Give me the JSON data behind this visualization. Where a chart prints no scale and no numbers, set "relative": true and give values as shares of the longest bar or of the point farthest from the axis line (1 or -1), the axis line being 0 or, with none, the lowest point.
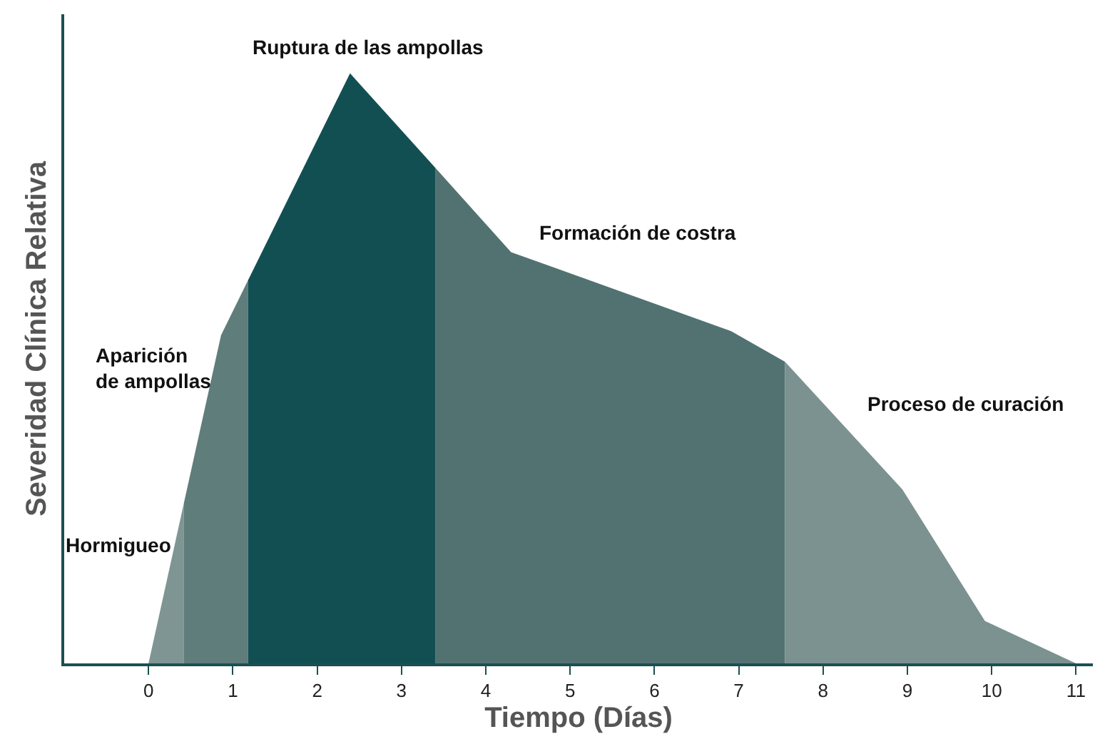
{
  "chart_data": {
    "type": "area",
    "relative": true,
    "xlabel": "Tiempo (Días)",
    "ylabel": "Severidad Clínica Relativa",
    "xlim": [
      -1,
      11.2
    ],
    "xticks": [
      0,
      1,
      2,
      3,
      4,
      5,
      6,
      7,
      8,
      9,
      10,
      11
    ],
    "series": [
      {
        "color": "#7f9593",
        "x": [
          0,
          0.42
        ],
        "values": [
          0,
          0.272
        ]
      },
      {
        "color": "#5f7d7b",
        "x": [
          0.42,
          0.86,
          1.18
        ],
        "values": [
          0.272,
          0.556,
          0.649
        ]
      },
      {
        "color": "#124f53",
        "x": [
          1.18,
          2.39,
          3.4
        ],
        "values": [
          0.649,
          1,
          0.84
        ]
      },
      {
        "color": "#527272",
        "x": [
          3.4,
          4.3,
          6.91,
          7.55
        ],
        "values": [
          0.84,
          0.697,
          0.563,
          0.511
        ]
      },
      {
        "color": "#7b9290",
        "x": [
          7.55,
          8.94,
          9.92,
          11
        ],
        "values": [
          0.511,
          0.295,
          0.072,
          0
        ]
      }
    ],
    "annotations": [
      "Hormigueo",
      "Aparición\nde ampollas",
      "Ruptura de las ampollas",
      "Formación de costra",
      "Proceso de curación"
    ]
  }
}
